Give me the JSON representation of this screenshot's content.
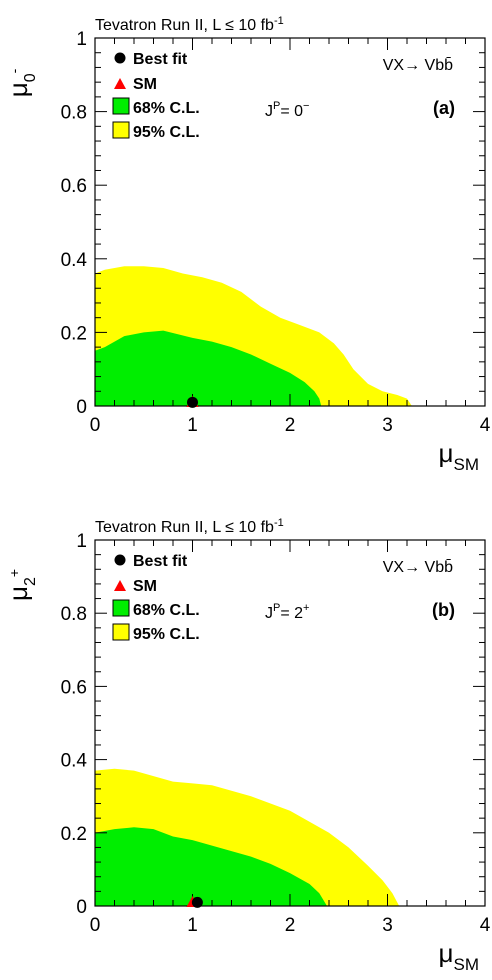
{
  "colors": {
    "cl68": "#00ee00",
    "cl95": "#ffff00",
    "best_fit": "#000000",
    "sm": "#ff0000"
  },
  "chart_data": [
    {
      "type": "contour",
      "panel_tag": "(a)",
      "header": "Tevatron Run II, L ≤ 10 fb",
      "header_sup": "-1",
      "process": "VX→ Vbb̄",
      "jp_base": "J",
      "jp_sup": "P",
      "jp_value": "= 0",
      "jp_value_sup": "−",
      "xlabel": "μ",
      "xlabel_sub": "SM",
      "ylabel": "μ",
      "ylabel_sub": "0",
      "ylabel_sup": "-",
      "xlim": [
        0,
        4
      ],
      "ylim": [
        0,
        1
      ],
      "xticks": [
        "0",
        "1",
        "2",
        "3",
        "4"
      ],
      "yticks": [
        "0",
        "0.2",
        "0.4",
        "0.6",
        "0.8",
        "1"
      ],
      "legend": [
        "Best fit",
        "SM",
        "68% C.L.",
        "95% C.L."
      ],
      "best_fit": [
        1.0,
        0.01
      ],
      "sm": [
        1.0,
        0.0
      ],
      "cl95_boundary": [
        [
          0,
          0.36
        ],
        [
          0.1,
          0.37
        ],
        [
          0.3,
          0.38
        ],
        [
          0.5,
          0.38
        ],
        [
          0.7,
          0.375
        ],
        [
          0.9,
          0.36
        ],
        [
          1.0,
          0.355
        ],
        [
          1.1,
          0.35
        ],
        [
          1.3,
          0.335
        ],
        [
          1.5,
          0.31
        ],
        [
          1.7,
          0.27
        ],
        [
          1.9,
          0.24
        ],
        [
          2.1,
          0.22
        ],
        [
          2.3,
          0.2
        ],
        [
          2.45,
          0.17
        ],
        [
          2.55,
          0.14
        ],
        [
          2.65,
          0.1
        ],
        [
          2.8,
          0.06
        ],
        [
          2.95,
          0.04
        ],
        [
          3.1,
          0.03
        ],
        [
          3.2,
          0.02
        ],
        [
          3.25,
          0.0
        ]
      ],
      "cl68_boundary": [
        [
          0,
          0.15
        ],
        [
          0.1,
          0.16
        ],
        [
          0.3,
          0.19
        ],
        [
          0.5,
          0.2
        ],
        [
          0.7,
          0.205
        ],
        [
          0.85,
          0.195
        ],
        [
          1.0,
          0.185
        ],
        [
          1.2,
          0.175
        ],
        [
          1.4,
          0.16
        ],
        [
          1.6,
          0.14
        ],
        [
          1.8,
          0.115
        ],
        [
          2.0,
          0.09
        ],
        [
          2.15,
          0.065
        ],
        [
          2.25,
          0.04
        ],
        [
          2.3,
          0.02
        ],
        [
          2.32,
          0.0
        ]
      ]
    },
    {
      "type": "contour",
      "panel_tag": "(b)",
      "header": "Tevatron Run II, L ≤ 10 fb",
      "header_sup": "-1",
      "process": "VX→ Vbb̄",
      "jp_base": "J",
      "jp_sup": "P",
      "jp_value": "= 2",
      "jp_value_sup": "+",
      "xlabel": "μ",
      "xlabel_sub": "SM",
      "ylabel": "μ",
      "ylabel_sub": "2",
      "ylabel_sup": "+",
      "xlim": [
        0,
        4
      ],
      "ylim": [
        0,
        1
      ],
      "xticks": [
        "0",
        "1",
        "2",
        "3",
        "4"
      ],
      "yticks": [
        "0",
        "0.2",
        "0.4",
        "0.6",
        "0.8",
        "1"
      ],
      "legend": [
        "Best fit",
        "SM",
        "68% C.L.",
        "95% C.L."
      ],
      "best_fit": [
        1.05,
        0.01
      ],
      "sm": [
        1.0,
        0.0
      ],
      "cl95_boundary": [
        [
          0,
          0.37
        ],
        [
          0.2,
          0.375
        ],
        [
          0.4,
          0.37
        ],
        [
          0.6,
          0.355
        ],
        [
          0.8,
          0.34
        ],
        [
          1.0,
          0.335
        ],
        [
          1.2,
          0.33
        ],
        [
          1.4,
          0.315
        ],
        [
          1.6,
          0.3
        ],
        [
          1.8,
          0.28
        ],
        [
          2.0,
          0.26
        ],
        [
          2.2,
          0.23
        ],
        [
          2.4,
          0.2
        ],
        [
          2.6,
          0.16
        ],
        [
          2.8,
          0.11
        ],
        [
          2.95,
          0.07
        ],
        [
          3.05,
          0.035
        ],
        [
          3.12,
          0.0
        ]
      ],
      "cl68_boundary": [
        [
          0,
          0.2
        ],
        [
          0.2,
          0.21
        ],
        [
          0.4,
          0.215
        ],
        [
          0.6,
          0.21
        ],
        [
          0.8,
          0.19
        ],
        [
          1.0,
          0.18
        ],
        [
          1.2,
          0.165
        ],
        [
          1.4,
          0.15
        ],
        [
          1.6,
          0.135
        ],
        [
          1.8,
          0.115
        ],
        [
          2.0,
          0.09
        ],
        [
          2.2,
          0.06
        ],
        [
          2.3,
          0.035
        ],
        [
          2.38,
          0.0
        ]
      ]
    }
  ]
}
